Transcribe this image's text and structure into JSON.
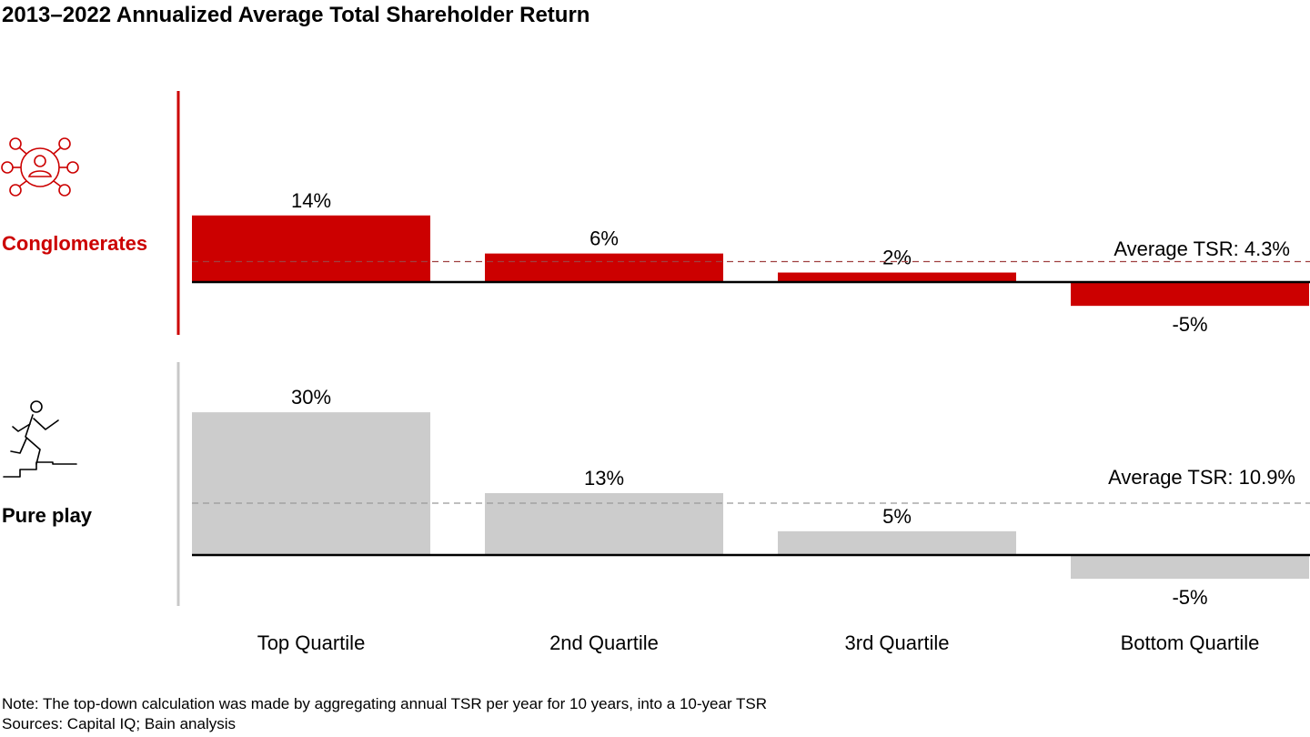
{
  "title": "2013–2022 Annualized Average Total Shareholder Return",
  "note": "Note: The top-down calculation was made by aggregating annual TSR per year for 10 years, into a 10-year TSR",
  "sources": "Sources: Capital IQ; Bain analysis",
  "colors": {
    "conglomerates": "#cc0000",
    "pure_play": "#cccccc",
    "accent_text": "#cc0000"
  },
  "chart_data": [
    {
      "type": "bar",
      "group": "Conglomerates",
      "icon": "network-people-icon",
      "categories": [
        "Top Quartile",
        "2nd Quartile",
        "3rd Quartile",
        "Bottom Quartile"
      ],
      "values": [
        14,
        6,
        2,
        -5
      ],
      "value_labels": [
        "14%",
        "6%",
        "2%",
        "-5%"
      ],
      "average": 4.3,
      "average_label": "Average TSR: 4.3%"
    },
    {
      "type": "bar",
      "group": "Pure play",
      "icon": "runner-stairs-icon",
      "categories": [
        "Top Quartile",
        "2nd Quartile",
        "3rd Quartile",
        "Bottom Quartile"
      ],
      "values": [
        30,
        13,
        5,
        -5
      ],
      "value_labels": [
        "30%",
        "13%",
        "5%",
        "-5%"
      ],
      "average": 10.9,
      "average_label": "Average TSR: 10.9%"
    }
  ]
}
